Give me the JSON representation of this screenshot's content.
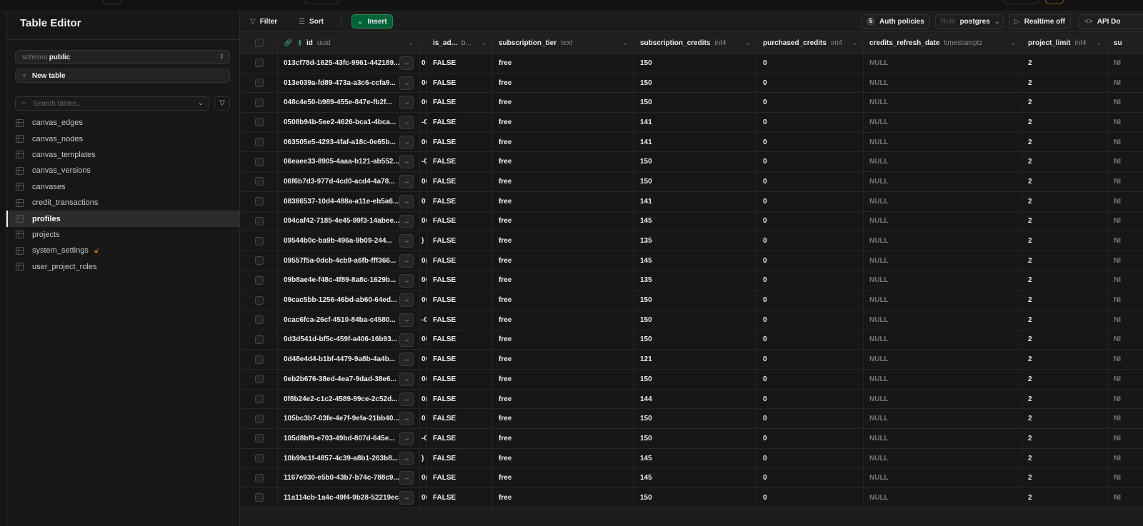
{
  "sidebar": {
    "title": "Table Editor",
    "schema_label": "schema",
    "schema_value": "public",
    "new_table": "New table",
    "search_placeholder": "Search tables...",
    "tables": [
      {
        "name": "canvas_edges"
      },
      {
        "name": "canvas_nodes"
      },
      {
        "name": "canvas_templates"
      },
      {
        "name": "canvas_versions"
      },
      {
        "name": "canvases"
      },
      {
        "name": "credit_transactions"
      },
      {
        "name": "profiles",
        "active": true
      },
      {
        "name": "projects"
      },
      {
        "name": "system_settings",
        "locked": true
      },
      {
        "name": "user_project_roles"
      }
    ]
  },
  "toolbar": {
    "filter": "Filter",
    "sort": "Sort",
    "insert": "Insert",
    "auth_count": "5",
    "auth_policies": "Auth policies",
    "role_label": "Role",
    "role_value": "postgres",
    "realtime": "Realtime off",
    "api_docs": "API Do"
  },
  "colors": {
    "accent": "#3ecf8e",
    "insert_bg": "#006239",
    "lock": "#b86f1c"
  },
  "columns": [
    {
      "name": "id",
      "type": "uuid"
    },
    {
      "name": "",
      "type": ""
    },
    {
      "name": "is_ad...",
      "type": "b..."
    },
    {
      "name": "subscription_tier",
      "type": "text"
    },
    {
      "name": "subscription_credits",
      "type": "int4"
    },
    {
      "name": "purchased_credits",
      "type": "int4"
    },
    {
      "name": "credits_refresh_date",
      "type": "timestamptz"
    },
    {
      "name": "project_limit",
      "type": "int4"
    },
    {
      "name": "su",
      "type": ""
    }
  ],
  "rows": [
    {
      "id": "013cf78d-1625-43fc-9961-442189...",
      "frag": "0",
      "is_admin": "FALSE",
      "tier": "free",
      "credits": "150",
      "purchased": "0",
      "refresh": "NULL",
      "limit": "2",
      "next": "NI"
    },
    {
      "id": "013e039a-fd89-473a-a3c6-ccfa9...",
      "frag": "0C",
      "is_admin": "FALSE",
      "tier": "free",
      "credits": "150",
      "purchased": "0",
      "refresh": "NULL",
      "limit": "2",
      "next": "NI"
    },
    {
      "id": "048c4e50-b989-455e-847e-fb2f...",
      "frag": "0C",
      "is_admin": "FALSE",
      "tier": "free",
      "credits": "150",
      "purchased": "0",
      "refresh": "NULL",
      "limit": "2",
      "next": "NI"
    },
    {
      "id": "0508b94b-5ee2-4626-bca1-4bca...",
      "frag": "-0",
      "is_admin": "FALSE",
      "tier": "free",
      "credits": "141",
      "purchased": "0",
      "refresh": "NULL",
      "limit": "2",
      "next": "NI"
    },
    {
      "id": "063505e5-4293-4faf-a18c-0e65b...",
      "frag": "0C",
      "is_admin": "FALSE",
      "tier": "free",
      "credits": "141",
      "purchased": "0",
      "refresh": "NULL",
      "limit": "2",
      "next": "NI"
    },
    {
      "id": "06eaee33-8905-4aaa-b121-ab552...",
      "frag": "-0",
      "is_admin": "FALSE",
      "tier": "free",
      "credits": "150",
      "purchased": "0",
      "refresh": "NULL",
      "limit": "2",
      "next": "NI"
    },
    {
      "id": "06f6b7d3-977d-4cd0-acd4-4a78...",
      "frag": "0C",
      "is_admin": "FALSE",
      "tier": "free",
      "credits": "150",
      "purchased": "0",
      "refresh": "NULL",
      "limit": "2",
      "next": "NI"
    },
    {
      "id": "08386537-10d4-488a-a11e-eb5a6...",
      "frag": "0",
      "is_admin": "FALSE",
      "tier": "free",
      "credits": "141",
      "purchased": "0",
      "refresh": "NULL",
      "limit": "2",
      "next": "NI"
    },
    {
      "id": "094caf42-7185-4e45-99f3-14abee...",
      "frag": "0C",
      "is_admin": "FALSE",
      "tier": "free",
      "credits": "145",
      "purchased": "0",
      "refresh": "NULL",
      "limit": "2",
      "next": "NI"
    },
    {
      "id": "09544b0c-ba9b-496a-9b09-244...",
      "frag": ")",
      "is_admin": "FALSE",
      "tier": "free",
      "credits": "135",
      "purchased": "0",
      "refresh": "NULL",
      "limit": "2",
      "next": "NI"
    },
    {
      "id": "09557f5a-0dcb-4cb9-a6fb-fff366...",
      "frag": "0(",
      "is_admin": "FALSE",
      "tier": "free",
      "credits": "145",
      "purchased": "0",
      "refresh": "NULL",
      "limit": "2",
      "next": "NI"
    },
    {
      "id": "09b8ae4e-f48c-4f89-8a8c-1629b...",
      "frag": "0C",
      "is_admin": "FALSE",
      "tier": "free",
      "credits": "135",
      "purchased": "0",
      "refresh": "NULL",
      "limit": "2",
      "next": "NI"
    },
    {
      "id": "09cac5bb-1256-46bd-ab60-64ed...",
      "frag": "0C",
      "is_admin": "FALSE",
      "tier": "free",
      "credits": "150",
      "purchased": "0",
      "refresh": "NULL",
      "limit": "2",
      "next": "NI"
    },
    {
      "id": "0cac6fca-26cf-4510-84ba-c4580...",
      "frag": "-0",
      "is_admin": "FALSE",
      "tier": "free",
      "credits": "150",
      "purchased": "0",
      "refresh": "NULL",
      "limit": "2",
      "next": "NI"
    },
    {
      "id": "0d3d541d-bf5c-459f-a406-16b93...",
      "frag": "0C",
      "is_admin": "FALSE",
      "tier": "free",
      "credits": "150",
      "purchased": "0",
      "refresh": "NULL",
      "limit": "2",
      "next": "NI"
    },
    {
      "id": "0d48e4d4-b1bf-4479-9a8b-4a4b...",
      "frag": "0C",
      "is_admin": "FALSE",
      "tier": "free",
      "credits": "121",
      "purchased": "0",
      "refresh": "NULL",
      "limit": "2",
      "next": "NI"
    },
    {
      "id": "0eb2b676-38ed-4ea7-9dad-38e6...",
      "frag": "0C",
      "is_admin": "FALSE",
      "tier": "free",
      "credits": "150",
      "purchased": "0",
      "refresh": "NULL",
      "limit": "2",
      "next": "NI"
    },
    {
      "id": "0f8b24e2-c1c2-4589-99ce-2c52d...",
      "frag": "0(",
      "is_admin": "FALSE",
      "tier": "free",
      "credits": "144",
      "purchased": "0",
      "refresh": "NULL",
      "limit": "2",
      "next": "NI"
    },
    {
      "id": "105bc3b7-03fe-4e7f-9efa-21bb40...",
      "frag": "0",
      "is_admin": "FALSE",
      "tier": "free",
      "credits": "150",
      "purchased": "0",
      "refresh": "NULL",
      "limit": "2",
      "next": "NI"
    },
    {
      "id": "105d8bf9-e703-49bd-807d-645e...",
      "frag": "-0",
      "is_admin": "FALSE",
      "tier": "free",
      "credits": "150",
      "purchased": "0",
      "refresh": "NULL",
      "limit": "2",
      "next": "NI"
    },
    {
      "id": "10b99c1f-4857-4c39-a8b1-263b8...",
      "frag": ")",
      "is_admin": "FALSE",
      "tier": "free",
      "credits": "145",
      "purchased": "0",
      "refresh": "NULL",
      "limit": "2",
      "next": "NI"
    },
    {
      "id": "1167e930-e5b0-43b7-b74c-788c9...",
      "frag": "0(",
      "is_admin": "FALSE",
      "tier": "free",
      "credits": "145",
      "purchased": "0",
      "refresh": "NULL",
      "limit": "2",
      "next": "NI"
    },
    {
      "id": "11a114cb-1a4c-49f4-9b28-52219ec...",
      "frag": "0C",
      "is_admin": "FALSE",
      "tier": "free",
      "credits": "150",
      "purchased": "0",
      "refresh": "NULL",
      "limit": "2",
      "next": "NI"
    }
  ]
}
